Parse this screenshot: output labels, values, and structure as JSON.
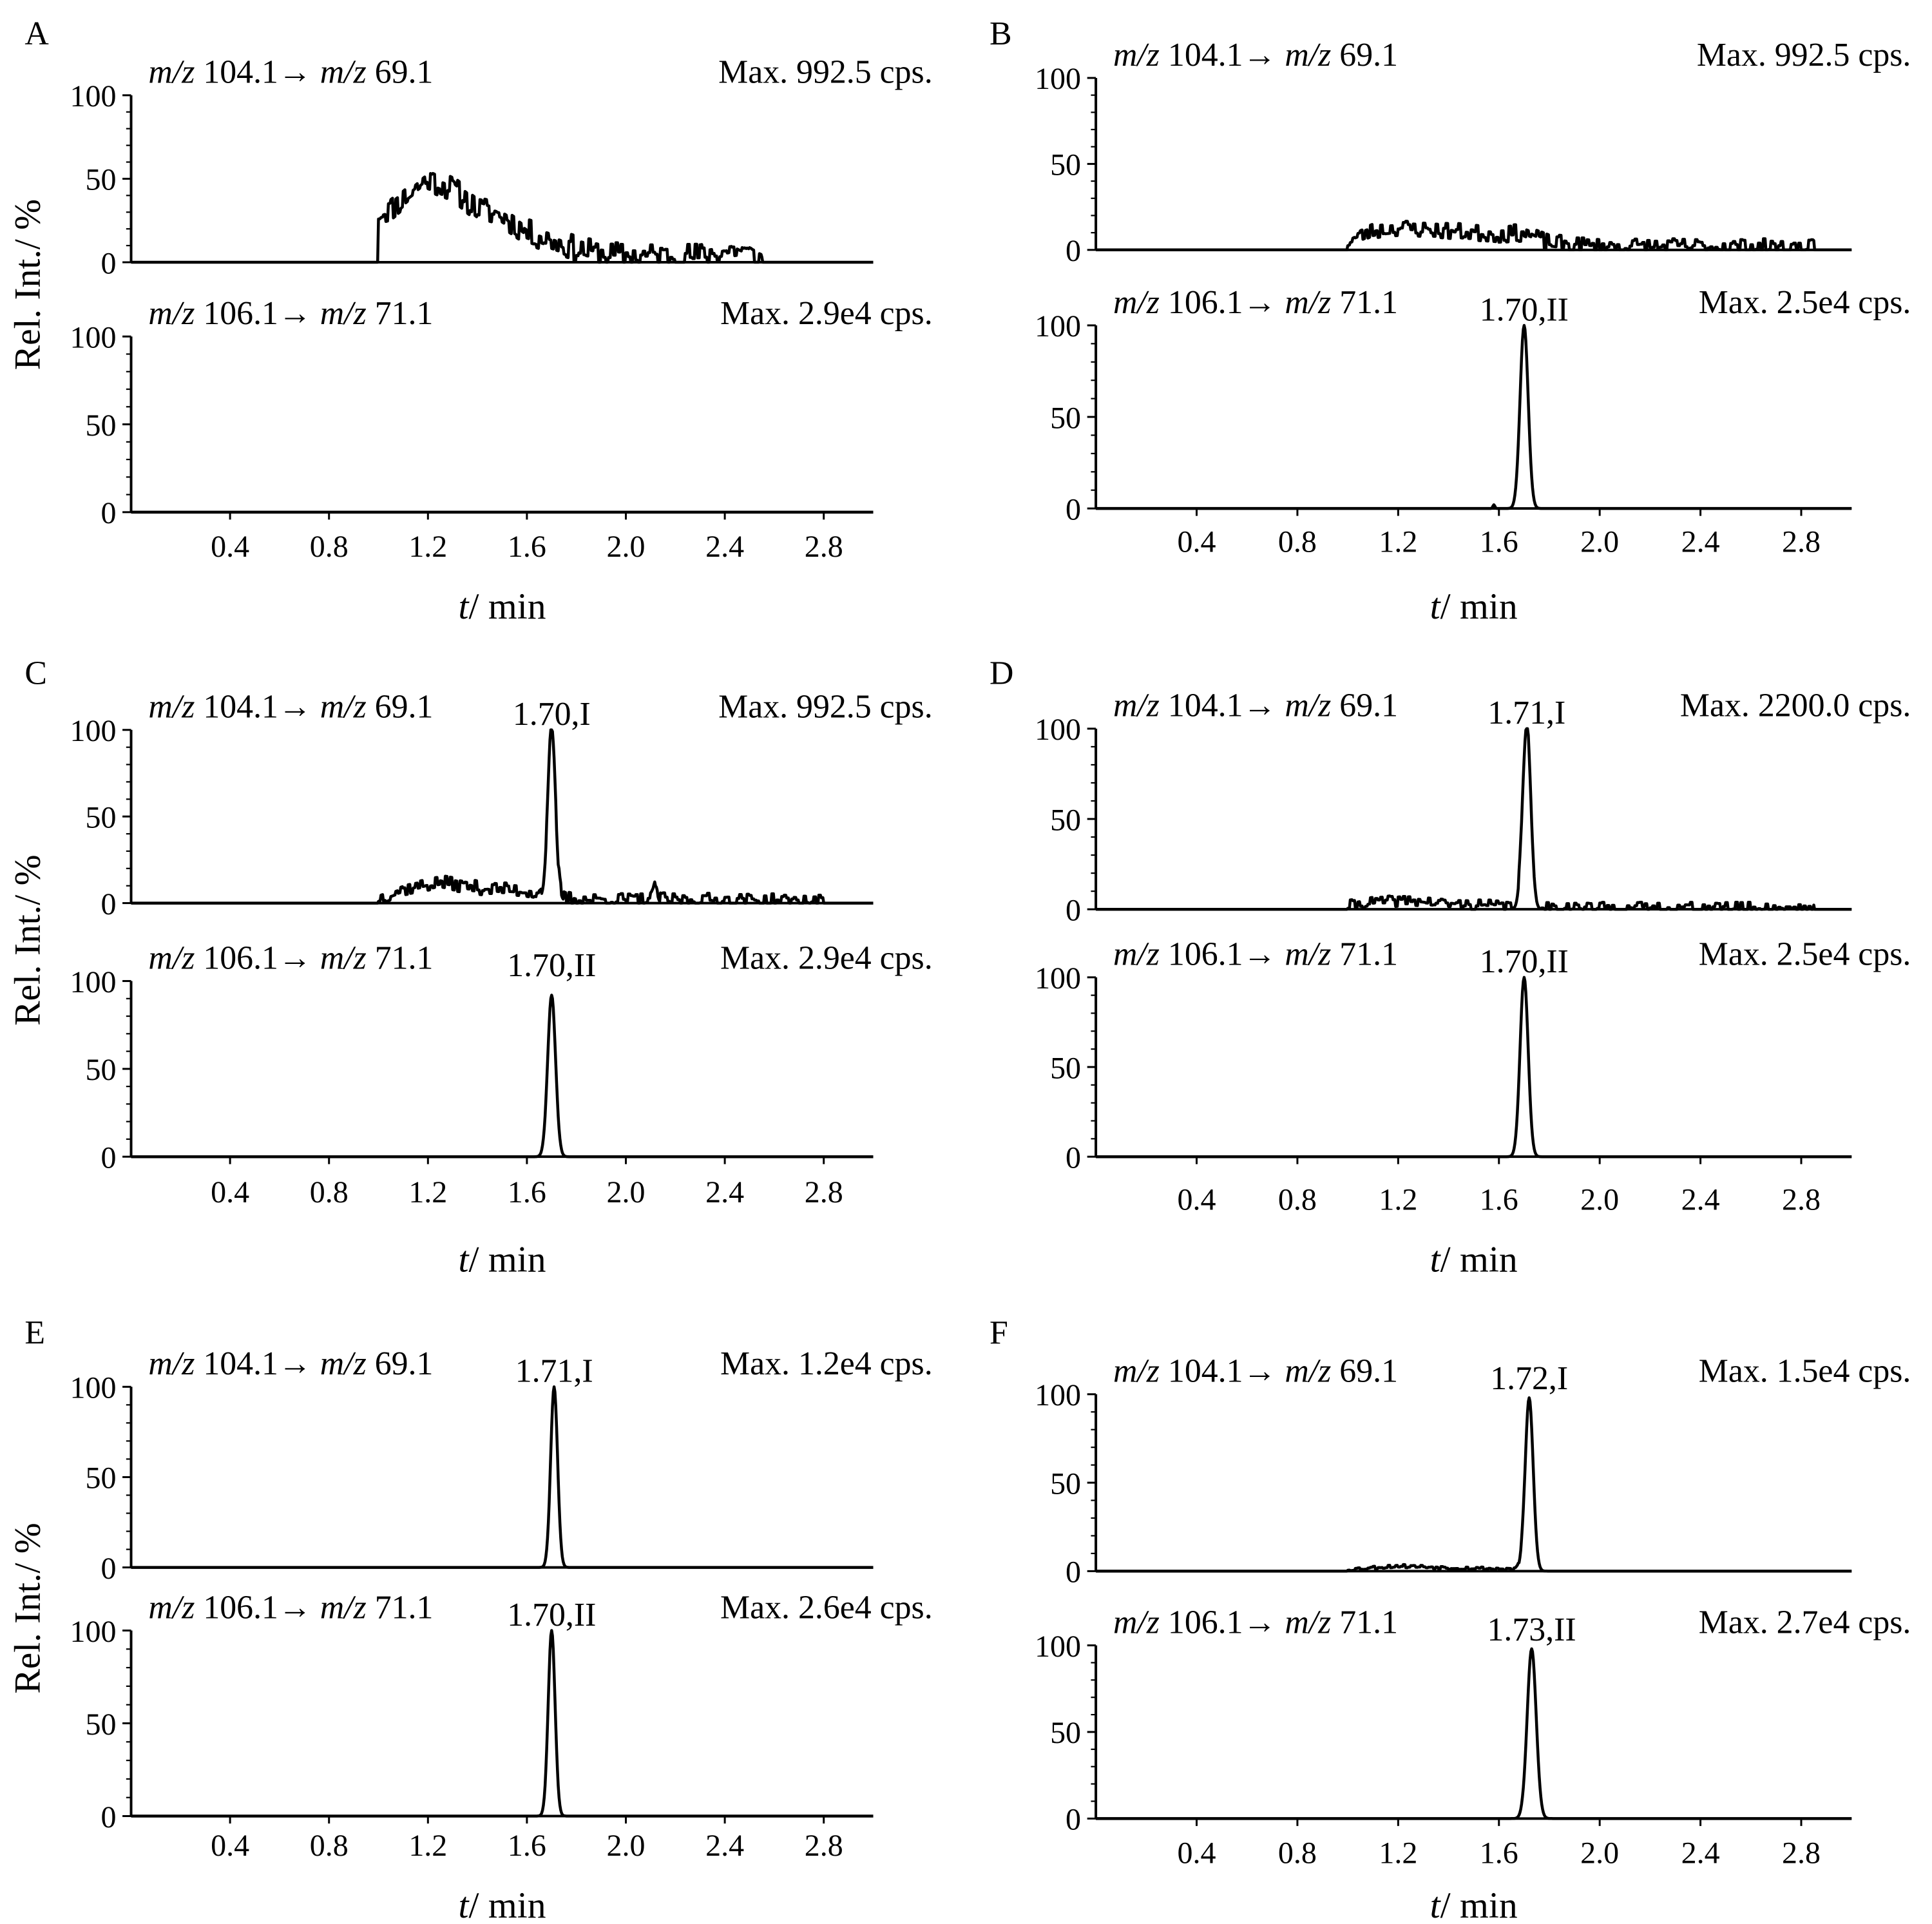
{
  "figure": {
    "y_axis_label": "Rel. Int./ %",
    "x_axis_label": "/ min",
    "x_axis_var": "t"
  },
  "chart_data": [
    {
      "type": "line",
      "panel": "A",
      "x_ticks": [
        "0.4",
        "0.8",
        "1.2",
        "1.6",
        "2.0",
        "2.4",
        "2.8"
      ],
      "xlim": [
        0,
        3.0
      ],
      "traces": [
        {
          "channel_mz": "m/z",
          "channel_from": "104.1",
          "channel_arrow": "→",
          "channel_to": "69.1",
          "max": "Max. 992.5 cps.",
          "peak_label": "",
          "ylim": [
            0,
            100
          ],
          "y_ticks": [
            "100",
            "50",
            "0"
          ],
          "signal": {
            "kind": "noise",
            "start": 1.0,
            "end": 2.55,
            "level": [
              [
                1.0,
                30
              ],
              [
                1.05,
                32
              ],
              [
                1.2,
                50
              ],
              [
                1.3,
                44
              ],
              [
                1.4,
                32
              ],
              [
                1.5,
                28
              ],
              [
                1.6,
                18
              ],
              [
                1.7,
                13
              ],
              [
                1.8,
                8
              ],
              [
                1.9,
                5
              ],
              [
                2.0,
                4
              ],
              [
                2.3,
                4
              ],
              [
                2.45,
                8
              ],
              [
                2.55,
                1
              ]
            ],
            "jitter": 8,
            "seed": 11
          }
        },
        {
          "channel_mz": "m/z",
          "channel_from": "106.1",
          "channel_arrow": "→",
          "channel_to": "71.1",
          "max": "Max. 2.9e4 cps.",
          "peak_label": "",
          "ylim": [
            0,
            100
          ],
          "y_ticks": [
            "100",
            "50",
            "0"
          ],
          "signal": {
            "kind": "flat"
          }
        }
      ]
    },
    {
      "type": "line",
      "panel": "B",
      "x_ticks": [
        "0.4",
        "0.8",
        "1.2",
        "1.6",
        "2.0",
        "2.4",
        "2.8"
      ],
      "xlim": [
        0,
        3.0
      ],
      "traces": [
        {
          "channel_mz": "m/z",
          "channel_from": "104.1",
          "channel_arrow": "→",
          "channel_to": "69.1",
          "max": "Max. 992.5 cps.",
          "peak_label": "",
          "ylim": [
            0,
            100
          ],
          "y_ticks": [
            "100",
            "50",
            "0"
          ],
          "signal": {
            "kind": "noise",
            "start": 1.0,
            "end": 2.85,
            "level": [
              [
                1.0,
                5
              ],
              [
                1.1,
                11
              ],
              [
                1.2,
                13
              ],
              [
                1.4,
                11
              ],
              [
                1.6,
                9
              ],
              [
                1.7,
                10
              ],
              [
                1.8,
                4
              ],
              [
                2.0,
                2
              ],
              [
                2.5,
                2
              ],
              [
                2.85,
                1
              ]
            ],
            "jitter": 5,
            "seed": 23
          }
        },
        {
          "channel_mz": "m/z",
          "channel_from": "106.1",
          "channel_arrow": "→",
          "channel_to": "71.1",
          "max": "Max. 2.5e4 cps.",
          "peak_label": "1.70,II",
          "ylim": [
            0,
            100
          ],
          "y_ticks": [
            "100",
            "50",
            "0"
          ],
          "signal": {
            "kind": "peak",
            "center": 1.7,
            "height": 100,
            "sigma": 0.016,
            "extra": [
              [
                1.58,
                2,
                0.004
              ]
            ]
          }
        }
      ]
    },
    {
      "type": "line",
      "panel": "C",
      "x_ticks": [
        "0.4",
        "0.8",
        "1.2",
        "1.6",
        "2.0",
        "2.4",
        "2.8"
      ],
      "xlim": [
        0,
        3.0
      ],
      "traces": [
        {
          "channel_mz": "m/z",
          "channel_from": "104.1",
          "channel_arrow": "→",
          "channel_to": "69.1",
          "max": "Max. 992.5 cps.",
          "peak_label": "1.70,I",
          "ylim": [
            0,
            100
          ],
          "y_ticks": [
            "100",
            "50",
            "0"
          ],
          "signal": {
            "kind": "peak_noise",
            "center": 1.7,
            "height": 95,
            "sigma": 0.015,
            "start": 1.0,
            "end": 2.8,
            "level": [
              [
                1.0,
                3
              ],
              [
                1.1,
                8
              ],
              [
                1.25,
                12
              ],
              [
                1.4,
                9
              ],
              [
                1.6,
                7
              ],
              [
                1.8,
                2
              ],
              [
                2.3,
                2
              ],
              [
                2.8,
                1
              ]
            ],
            "jitter": 4,
            "seed": 37,
            "extra": [
              [
                2.12,
                8,
                0.008
              ]
            ]
          }
        },
        {
          "channel_mz": "m/z",
          "channel_from": "106.1",
          "channel_arrow": "→",
          "channel_to": "71.1",
          "max": "Max. 2.9e4 cps.",
          "peak_label": "1.70,II",
          "ylim": [
            0,
            100
          ],
          "y_ticks": [
            "100",
            "50",
            "0"
          ],
          "signal": {
            "kind": "peak",
            "center": 1.7,
            "height": 92,
            "sigma": 0.016
          }
        }
      ]
    },
    {
      "type": "line",
      "panel": "D",
      "x_ticks": [
        "0.4",
        "0.8",
        "1.2",
        "1.6",
        "2.0",
        "2.4",
        "2.8"
      ],
      "xlim": [
        0,
        3.0
      ],
      "traces": [
        {
          "channel_mz": "m/z",
          "channel_from": "104.1",
          "channel_arrow": "→",
          "channel_to": "69.1",
          "max": "Max. 2200.0 cps.",
          "peak_label": "1.71,I",
          "ylim": [
            0,
            100
          ],
          "y_ticks": [
            "100",
            "50",
            "0"
          ],
          "signal": {
            "kind": "peak_noise",
            "center": 1.71,
            "height": 100,
            "sigma": 0.016,
            "start": 1.0,
            "end": 2.85,
            "level": [
              [
                1.0,
                2
              ],
              [
                1.1,
                4
              ],
              [
                1.25,
                5
              ],
              [
                1.4,
                3
              ],
              [
                1.6,
                2
              ],
              [
                2.0,
                1
              ],
              [
                2.85,
                1
              ]
            ],
            "jitter": 3,
            "seed": 41
          }
        },
        {
          "channel_mz": "m/z",
          "channel_from": "106.1",
          "channel_arrow": "→",
          "channel_to": "71.1",
          "max": "Max. 2.5e4 cps.",
          "peak_label": "1.70,II",
          "ylim": [
            0,
            100
          ],
          "y_ticks": [
            "100",
            "50",
            "0"
          ],
          "signal": {
            "kind": "peak",
            "center": 1.7,
            "height": 100,
            "sigma": 0.016
          }
        }
      ]
    },
    {
      "type": "line",
      "panel": "E",
      "x_ticks": [
        "0.4",
        "0.8",
        "1.2",
        "1.6",
        "2.0",
        "2.4",
        "2.8"
      ],
      "xlim": [
        0,
        3.0
      ],
      "traces": [
        {
          "channel_mz": "m/z",
          "channel_from": "104.1",
          "channel_arrow": "→",
          "channel_to": "69.1",
          "max": "Max. 1.2e4 cps.",
          "peak_label": "1.71,I",
          "ylim": [
            0,
            100
          ],
          "y_ticks": [
            "100",
            "50",
            "0"
          ],
          "signal": {
            "kind": "peak",
            "center": 1.71,
            "height": 100,
            "sigma": 0.014
          }
        },
        {
          "channel_mz": "m/z",
          "channel_from": "106.1",
          "channel_arrow": "→",
          "channel_to": "71.1",
          "max": "Max. 2.6e4 cps.",
          "peak_label": "1.70,II",
          "ylim": [
            0,
            100
          ],
          "y_ticks": [
            "100",
            "50",
            "0"
          ],
          "signal": {
            "kind": "peak",
            "center": 1.7,
            "height": 100,
            "sigma": 0.014
          }
        }
      ]
    },
    {
      "type": "line",
      "panel": "F",
      "x_ticks": [
        "0.4",
        "0.8",
        "1.2",
        "1.6",
        "2.0",
        "2.4",
        "2.8"
      ],
      "xlim": [
        0,
        3.0
      ],
      "traces": [
        {
          "channel_mz": "m/z",
          "channel_from": "104.1",
          "channel_arrow": "→",
          "channel_to": "69.1",
          "max": "Max. 1.5e4 cps.",
          "peak_label": "1.72,I",
          "ylim": [
            0,
            100
          ],
          "y_ticks": [
            "100",
            "50",
            "0"
          ],
          "signal": {
            "kind": "peak_noise",
            "center": 1.72,
            "height": 98,
            "sigma": 0.016,
            "start": 1.0,
            "end": 1.7,
            "level": [
              [
                1.0,
                1
              ],
              [
                1.2,
                3
              ],
              [
                1.4,
                2
              ],
              [
                1.7,
                1
              ]
            ],
            "jitter": 1,
            "seed": 53
          }
        },
        {
          "channel_mz": "m/z",
          "channel_from": "106.1",
          "channel_arrow": "→",
          "channel_to": "71.1",
          "max": "Max. 2.7e4 cps.",
          "peak_label": "1.73,II",
          "ylim": [
            0,
            100
          ],
          "y_ticks": [
            "100",
            "50",
            "0"
          ],
          "signal": {
            "kind": "peak",
            "center": 1.73,
            "height": 98,
            "sigma": 0.018
          }
        }
      ]
    }
  ]
}
